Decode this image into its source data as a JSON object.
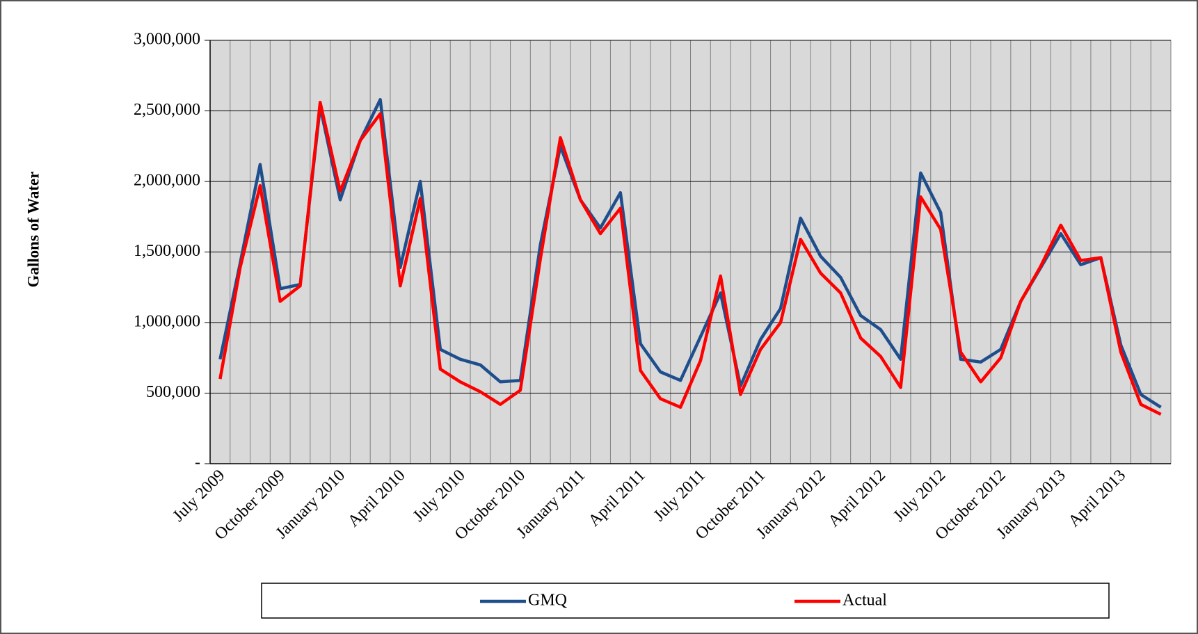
{
  "chart_data": {
    "type": "line",
    "y_label": "Gallons of Water",
    "categories": [
      "July 2009",
      null,
      null,
      "October 2009",
      null,
      null,
      "January 2010",
      null,
      null,
      "April 2010",
      null,
      null,
      "July 2010",
      null,
      null,
      "October 2010",
      null,
      null,
      "January 2011",
      null,
      null,
      "April 2011",
      null,
      null,
      "July 2011",
      null,
      null,
      "October 2011",
      null,
      null,
      "January 2012",
      null,
      null,
      "April 2012",
      null,
      null,
      "July 2012",
      null,
      null,
      "October 2012",
      null,
      null,
      "January 2013",
      null,
      null,
      "April 2013",
      null,
      null
    ],
    "series": [
      {
        "name": "GMQ",
        "color": "#1f4e8c",
        "values": [
          740000,
          1420000,
          2120000,
          1240000,
          1270000,
          2530000,
          1870000,
          2290000,
          2580000,
          1390000,
          2000000,
          810000,
          740000,
          700000,
          580000,
          590000,
          1550000,
          2250000,
          1870000,
          1670000,
          1920000,
          850000,
          650000,
          590000,
          900000,
          1210000,
          550000,
          880000,
          1100000,
          1740000,
          1470000,
          1320000,
          1050000,
          950000,
          740000,
          2060000,
          1780000,
          740000,
          720000,
          810000,
          1150000,
          1390000,
          1630000,
          1410000,
          1460000,
          840000,
          490000,
          400000
        ]
      },
      {
        "name": "Actual",
        "color": "#ff0000",
        "values": [
          600000,
          1390000,
          1970000,
          1150000,
          1260000,
          2560000,
          1930000,
          2290000,
          2480000,
          1260000,
          1880000,
          670000,
          580000,
          510000,
          420000,
          520000,
          1450000,
          2310000,
          1870000,
          1630000,
          1810000,
          660000,
          460000,
          400000,
          730000,
          1330000,
          490000,
          810000,
          1000000,
          1590000,
          1350000,
          1210000,
          890000,
          760000,
          540000,
          1890000,
          1660000,
          790000,
          580000,
          750000,
          1150000,
          1400000,
          1690000,
          1440000,
          1460000,
          790000,
          420000,
          350000
        ]
      }
    ],
    "ylim": [
      0,
      3000000
    ],
    "yticks": [
      {
        "value": 0,
        "label": "-"
      },
      {
        "value": 500000,
        "label": "500,000"
      },
      {
        "value": 1000000,
        "label": "1,000,000"
      },
      {
        "value": 1500000,
        "label": "1,500,000"
      },
      {
        "value": 2000000,
        "label": "2,000,000"
      },
      {
        "value": 2500000,
        "label": "2,500,000"
      },
      {
        "value": 3000000,
        "label": "3,000,000"
      }
    ],
    "grid": true,
    "legend": "bottom"
  }
}
